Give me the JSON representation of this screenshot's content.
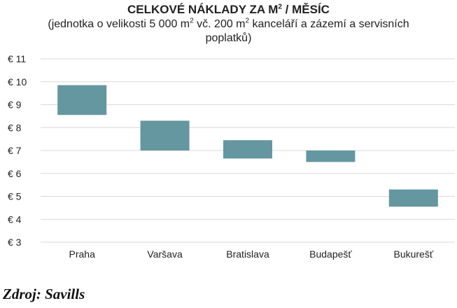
{
  "title": {
    "main": "CELKOVÉ NÁKLADY ZA M",
    "sup": "2",
    "tail": " / MĚSÍC"
  },
  "subtitle": {
    "part1": "(jednotka o velikosti 5 000 m",
    "sup1": "2",
    "part2": " vč. 200 m",
    "sup2": "2",
    "part3": " kanceláří a zázemí a servisních poplatků)"
  },
  "source": "Zdroj: Savills",
  "colors": {
    "bar": "#64979f",
    "grid": "#d9d9d9",
    "text": "#222222"
  },
  "chart_data": {
    "type": "bar",
    "subtype": "floating-range",
    "categories": [
      "Praha",
      "Varšava",
      "Bratislava",
      "Budapešť",
      "Bukurešť"
    ],
    "ranges": [
      [
        8.55,
        9.85
      ],
      [
        7.0,
        8.3
      ],
      [
        6.65,
        7.45
      ],
      [
        6.5,
        7.0
      ],
      [
        4.55,
        5.3
      ]
    ],
    "yticks": [
      3,
      4,
      5,
      6,
      7,
      8,
      9,
      10,
      11
    ],
    "ytick_labels": [
      "€ 3",
      "€ 4",
      "€ 5",
      "€ 6",
      "€ 7",
      "€ 8",
      "€ 9",
      "€ 10",
      "€ 11"
    ],
    "ylim": [
      3,
      11
    ],
    "grid": true,
    "legend": "none"
  }
}
